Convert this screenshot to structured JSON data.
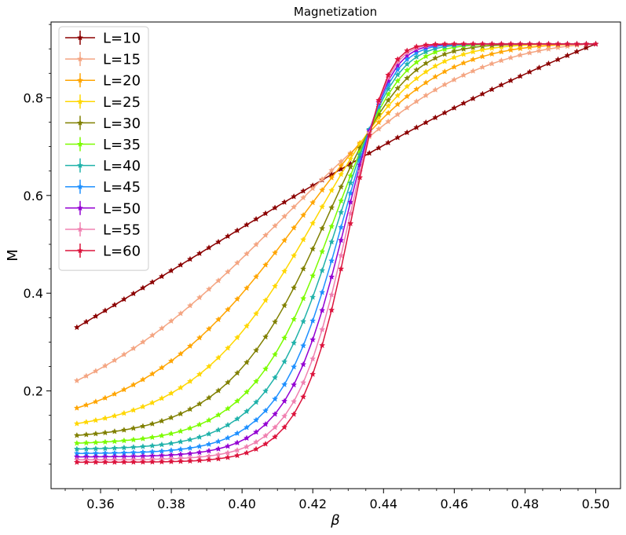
{
  "chart_data": {
    "type": "line",
    "title": "Magnetization",
    "xlabel": "β",
    "ylabel": "M",
    "xlim": [
      0.346,
      0.507
    ],
    "ylim": [
      0.0,
      0.955
    ],
    "xticks": [
      0.36,
      0.38,
      0.4,
      0.42,
      0.44,
      0.46,
      0.48,
      0.5
    ],
    "xtick_labels": [
      "0.36",
      "0.38",
      "0.40",
      "0.42",
      "0.44",
      "0.46",
      "0.48",
      "0.50"
    ],
    "yticks": [
      0.2,
      0.4,
      0.6,
      0.8
    ],
    "ytick_labels": [
      "0.2",
      "0.4",
      "0.6",
      "0.8"
    ],
    "grid": false,
    "legend_position": "top-left",
    "marker": "star",
    "x": {
      "start": 0.3533,
      "stop": 0.5,
      "count": 56
    },
    "series": [
      {
        "name": "L=10",
        "color": "#8b0000",
        "m_start": 0.33,
        "m_end": 0.91,
        "center": 0.385,
        "width": 0.085,
        "power": 1.0
      },
      {
        "name": "L=15",
        "color": "#f4a582",
        "m_start": 0.221,
        "m_end": 0.91,
        "center": 0.424,
        "width": 0.0335,
        "power": 1.4
      },
      {
        "name": "L=20",
        "color": "#ffa500",
        "m_start": 0.165,
        "m_end": 0.91,
        "center": 0.431,
        "width": 0.0245,
        "power": 1.7
      },
      {
        "name": "L=25",
        "color": "#ffd700",
        "m_start": 0.133,
        "m_end": 0.91,
        "center": 0.435,
        "width": 0.019,
        "power": 2.0
      },
      {
        "name": "L=30",
        "color": "#808000",
        "m_start": 0.109,
        "m_end": 0.91,
        "center": 0.4375,
        "width": 0.0155,
        "power": 2.3
      },
      {
        "name": "L=35",
        "color": "#7cfc00",
        "m_start": 0.093,
        "m_end": 0.91,
        "center": 0.439,
        "width": 0.013,
        "power": 2.6
      },
      {
        "name": "L=40",
        "color": "#20b2aa",
        "m_start": 0.081,
        "m_end": 0.91,
        "center": 0.44,
        "width": 0.0115,
        "power": 2.9
      },
      {
        "name": "L=45",
        "color": "#1e90ff",
        "m_start": 0.072,
        "m_end": 0.91,
        "center": 0.4408,
        "width": 0.0102,
        "power": 3.2
      },
      {
        "name": "L=50",
        "color": "#9400d3",
        "m_start": 0.065,
        "m_end": 0.91,
        "center": 0.4414,
        "width": 0.0093,
        "power": 3.5
      },
      {
        "name": "L=55",
        "color": "#f080b0",
        "m_start": 0.059,
        "m_end": 0.91,
        "center": 0.4419,
        "width": 0.0085,
        "power": 3.8
      },
      {
        "name": "L=60",
        "color": "#dc143c",
        "m_start": 0.054,
        "m_end": 0.91,
        "center": 0.4423,
        "width": 0.0079,
        "power": 4.1
      }
    ]
  }
}
